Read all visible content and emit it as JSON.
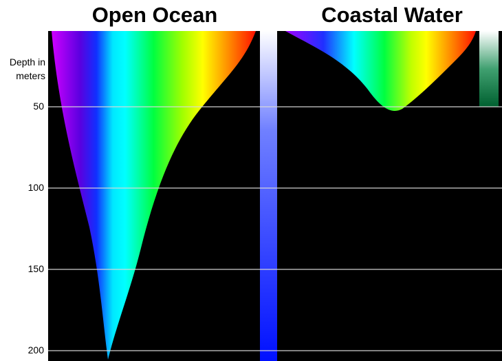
{
  "titles": [
    "Open Ocean",
    "Coastal Water"
  ],
  "depth_axis": {
    "label": "Depth in meters",
    "ticks": [
      50,
      100,
      150,
      200
    ]
  }
}
